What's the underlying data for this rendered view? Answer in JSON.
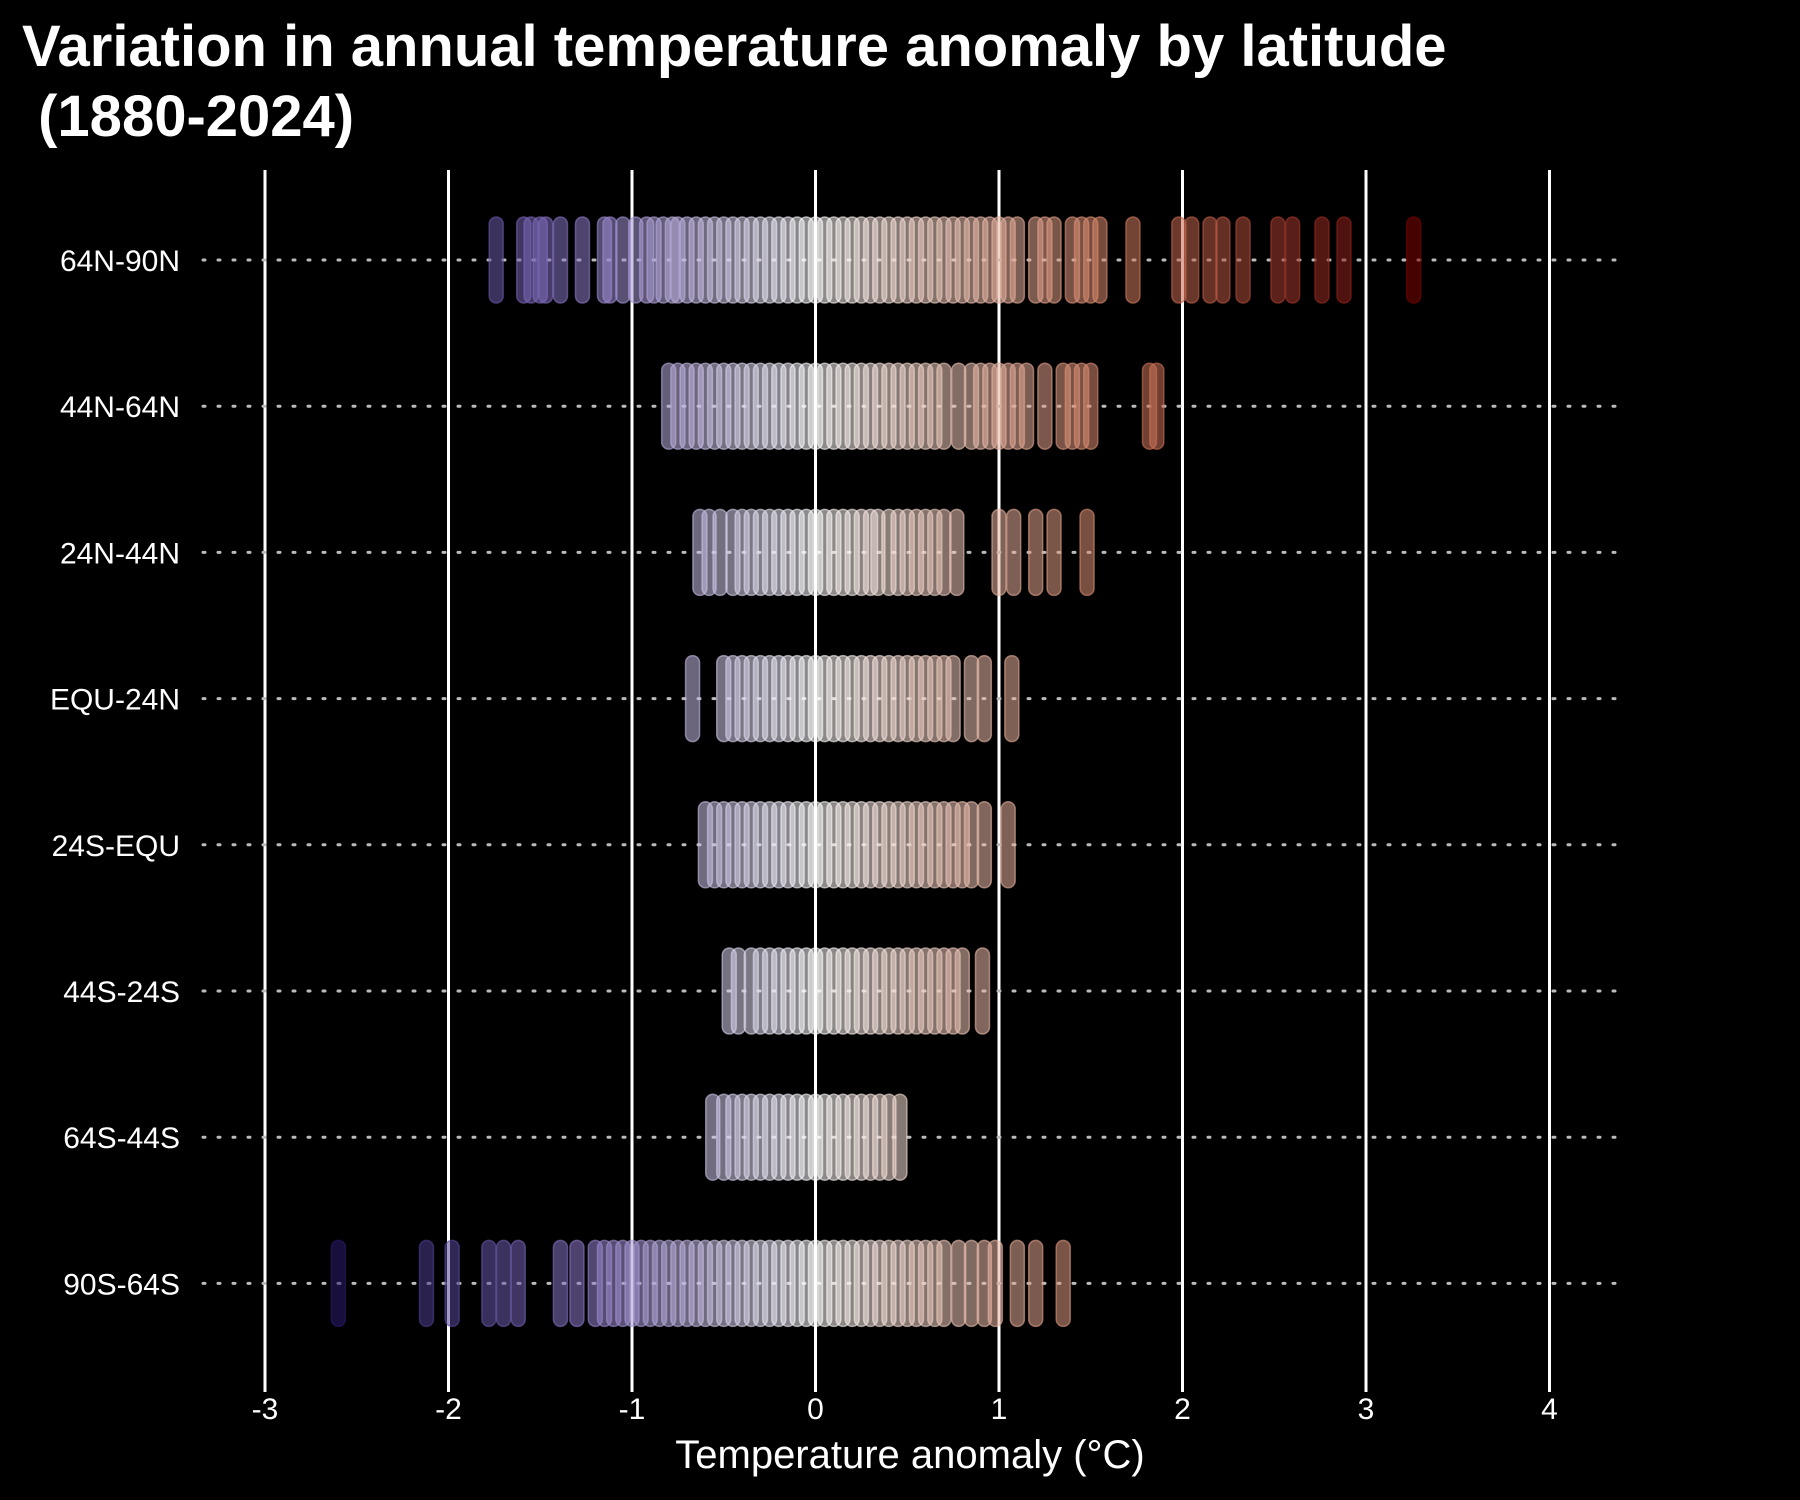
{
  "chart_data": {
    "type": "strip",
    "title": "Variation in annual temperature anomaly by latitude\n (1880-2024)",
    "xlabel": "Temperature anomaly (°C)",
    "ylabel": "",
    "xlim": [
      -3.5,
      4.4
    ],
    "x_ticks": [
      -3,
      -2,
      -1,
      0,
      1,
      2,
      3,
      4
    ],
    "x_tick_labels": [
      "-3",
      "-2",
      "-1",
      "0",
      "1",
      "2",
      "3",
      "4"
    ],
    "grid": "vertical solid white lines at x ticks; dotted horizontal guide per latitude band",
    "legend": "none",
    "colors": {
      "background": "#000000",
      "cold": "#2b1b6e",
      "neutral": "#ffffff",
      "warm": "#7a0000",
      "grid": "#ffffff",
      "text": "#ffffff"
    },
    "categories": [
      "64N-90N",
      "44N-64N",
      "24N-44N",
      "EQU-24N",
      "24S-EQU",
      "44S-24S",
      "64S-44S",
      "90S-64S"
    ],
    "series": [
      {
        "category": "64N-90N",
        "values": [
          -1.74,
          -1.59,
          -1.55,
          -1.5,
          -1.47,
          -1.39,
          -1.27,
          -1.15,
          -1.12,
          -1.05,
          -0.98,
          -0.92,
          -0.88,
          -0.83,
          -0.78,
          -0.75,
          -0.7,
          -0.65,
          -0.6,
          -0.55,
          -0.5,
          -0.45,
          -0.4,
          -0.35,
          -0.3,
          -0.25,
          -0.2,
          -0.15,
          -0.1,
          -0.05,
          0.0,
          0.05,
          0.1,
          0.15,
          0.2,
          0.25,
          0.3,
          0.35,
          0.4,
          0.45,
          0.5,
          0.55,
          0.6,
          0.65,
          0.7,
          0.75,
          0.8,
          0.85,
          0.9,
          0.95,
          1.0,
          1.05,
          1.1,
          1.2,
          1.25,
          1.3,
          1.4,
          1.45,
          1.5,
          1.55,
          1.73,
          1.98,
          2.05,
          2.15,
          2.22,
          2.33,
          2.52,
          2.6,
          2.76,
          2.88,
          3.26
        ]
      },
      {
        "category": "44N-64N",
        "values": [
          -0.8,
          -0.75,
          -0.7,
          -0.65,
          -0.6,
          -0.55,
          -0.5,
          -0.45,
          -0.4,
          -0.35,
          -0.3,
          -0.25,
          -0.2,
          -0.15,
          -0.1,
          -0.05,
          0.0,
          0.05,
          0.1,
          0.15,
          0.2,
          0.25,
          0.3,
          0.35,
          0.4,
          0.45,
          0.5,
          0.55,
          0.6,
          0.65,
          0.7,
          0.78,
          0.85,
          0.9,
          0.95,
          1.0,
          1.05,
          1.1,
          1.15,
          1.25,
          1.35,
          1.4,
          1.45,
          1.5,
          1.82,
          1.86
        ]
      },
      {
        "category": "24N-44N",
        "values": [
          -0.63,
          -0.58,
          -0.52,
          -0.45,
          -0.4,
          -0.35,
          -0.3,
          -0.25,
          -0.2,
          -0.15,
          -0.1,
          -0.05,
          0.0,
          0.05,
          0.1,
          0.15,
          0.2,
          0.25,
          0.3,
          0.34,
          0.4,
          0.45,
          0.5,
          0.55,
          0.6,
          0.65,
          0.7,
          0.77,
          1.0,
          1.08,
          1.2,
          1.3,
          1.48
        ]
      },
      {
        "category": "EQU-24N",
        "values": [
          -0.67,
          -0.5,
          -0.45,
          -0.4,
          -0.35,
          -0.3,
          -0.25,
          -0.2,
          -0.15,
          -0.1,
          -0.05,
          0.0,
          0.05,
          0.1,
          0.15,
          0.2,
          0.25,
          0.3,
          0.35,
          0.4,
          0.45,
          0.5,
          0.55,
          0.6,
          0.65,
          0.7,
          0.75,
          0.85,
          0.92,
          1.07
        ]
      },
      {
        "category": "24S-EQU",
        "values": [
          -0.6,
          -0.55,
          -0.5,
          -0.45,
          -0.4,
          -0.35,
          -0.3,
          -0.25,
          -0.2,
          -0.15,
          -0.1,
          -0.05,
          0.0,
          0.05,
          0.1,
          0.15,
          0.2,
          0.25,
          0.3,
          0.35,
          0.4,
          0.45,
          0.5,
          0.55,
          0.6,
          0.65,
          0.7,
          0.75,
          0.8,
          0.85,
          0.92,
          1.05
        ]
      },
      {
        "category": "44S-24S",
        "values": [
          -0.47,
          -0.42,
          -0.35,
          -0.3,
          -0.25,
          -0.2,
          -0.15,
          -0.1,
          -0.05,
          0.0,
          0.05,
          0.1,
          0.15,
          0.2,
          0.25,
          0.3,
          0.35,
          0.4,
          0.45,
          0.5,
          0.55,
          0.6,
          0.65,
          0.7,
          0.75,
          0.8,
          0.91
        ]
      },
      {
        "category": "64S-44S",
        "values": [
          -0.56,
          -0.5,
          -0.45,
          -0.4,
          -0.35,
          -0.3,
          -0.25,
          -0.2,
          -0.15,
          -0.1,
          -0.05,
          0.0,
          0.05,
          0.1,
          0.15,
          0.2,
          0.25,
          0.3,
          0.35,
          0.4,
          0.46
        ]
      },
      {
        "category": "90S-64S",
        "values": [
          -2.6,
          -2.12,
          -1.98,
          -1.78,
          -1.7,
          -1.62,
          -1.39,
          -1.3,
          -1.2,
          -1.15,
          -1.1,
          -1.05,
          -1.0,
          -0.95,
          -0.9,
          -0.85,
          -0.8,
          -0.75,
          -0.7,
          -0.65,
          -0.6,
          -0.55,
          -0.5,
          -0.45,
          -0.4,
          -0.35,
          -0.3,
          -0.25,
          -0.2,
          -0.15,
          -0.1,
          -0.05,
          0.0,
          0.05,
          0.1,
          0.15,
          0.2,
          0.25,
          0.3,
          0.35,
          0.4,
          0.45,
          0.5,
          0.55,
          0.6,
          0.65,
          0.7,
          0.78,
          0.85,
          0.92,
          0.98,
          1.1,
          1.2,
          1.35
        ]
      }
    ]
  }
}
